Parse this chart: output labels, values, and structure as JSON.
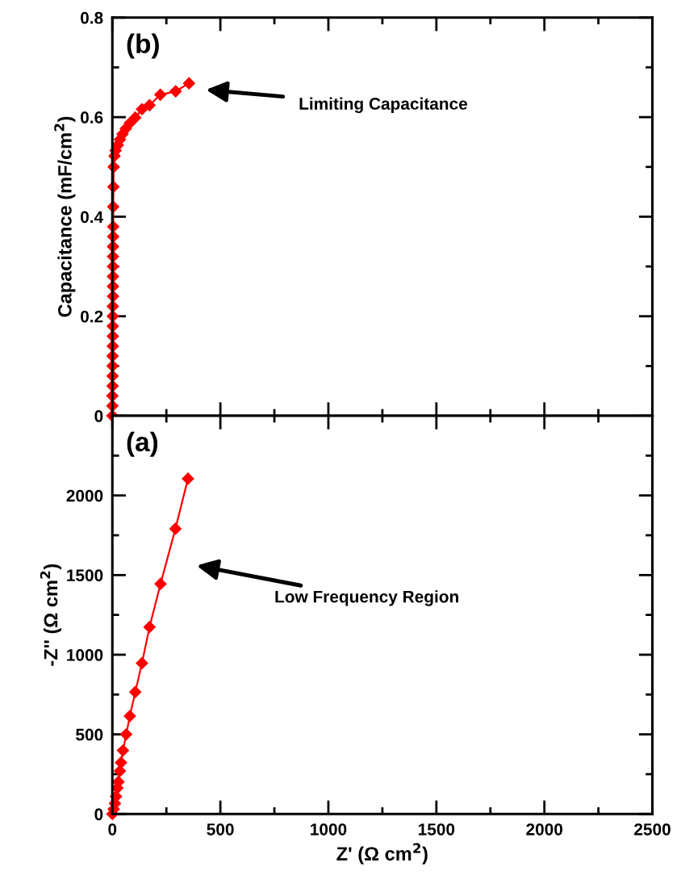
{
  "chart_data": [
    {
      "type": "line",
      "ylabel": "Capacitance (mF/cm$^{2}$)",
      "tick_labels": "y",
      "marker": "diamond",
      "line_style": "solid",
      "grid": false,
      "legend": false,
      "annotations": [
        "(b)",
        "Limiting Capacitance"
      ],
      "xlim": [
        0,
        2500
      ],
      "xticks": [
        0,
        {
          "value": 250,
          "label": null
        },
        500,
        {
          "value": 750,
          "label": null
        },
        1000,
        {
          "value": 1250,
          "label": null
        },
        1500,
        {
          "value": 1750,
          "label": null
        },
        2000,
        {
          "value": 2250,
          "label": null
        },
        2500
      ],
      "ylim": [
        0,
        0.8
      ],
      "yticks": [
        0,
        {
          "value": 0.1,
          "label": null
        },
        0.2,
        {
          "value": 0.3,
          "label": null
        },
        0.4,
        {
          "value": 0.5,
          "label": null
        },
        0.6,
        {
          "value": 0.7,
          "label": null
        },
        0.8
      ],
      "series": [
        {
          "color": "#ff0000",
          "x": [
            0,
            0,
            0,
            1,
            1,
            1,
            1,
            2,
            2,
            2,
            2,
            2,
            3,
            3,
            3,
            3,
            3,
            3,
            4,
            4,
            4,
            5,
            6,
            10,
            15,
            25,
            35,
            47,
            62,
            81,
            106,
            137,
            172,
            222,
            293,
            355
          ],
          "values": [
            0,
            0.02,
            0.04,
            0.06,
            0.08,
            0.1,
            0.12,
            0.14,
            0.16,
            0.18,
            0.2,
            0.22,
            0.24,
            0.26,
            0.28,
            0.3,
            0.32,
            0.34,
            0.36,
            0.38,
            0.42,
            0.46,
            0.5,
            0.522,
            0.533,
            0.544,
            0.555,
            0.566,
            0.577,
            0.588,
            0.599,
            0.616,
            0.624,
            0.645,
            0.652,
            0.668
          ]
        }
      ]
    },
    {
      "type": "line",
      "xlabel": "Z' (Ω cm$^{2}$)",
      "ylabel": "-Z'' (Ω cm$^{2}$)",
      "marker": "diamond",
      "line_style": "solid",
      "grid": false,
      "legend": false,
      "annotations": [
        "(a)",
        "Low Frequency Region"
      ],
      "xlim": [
        0,
        2500
      ],
      "xticks": [
        0,
        {
          "value": 250,
          "label": null
        },
        500,
        {
          "value": 750,
          "label": null
        },
        1000,
        {
          "value": 1250,
          "label": null
        },
        1500,
        {
          "value": 1750,
          "label": null
        },
        2000,
        {
          "value": 2250,
          "label": null
        },
        2500
      ],
      "ylim": [
        0,
        2500
      ],
      "yticks": [
        0,
        {
          "value": 250,
          "label": null
        },
        500,
        {
          "value": 750,
          "label": null
        },
        1000,
        {
          "value": 1250,
          "label": null
        },
        1500,
        {
          "value": 1750,
          "label": null
        },
        2000,
        {
          "value": 2250,
          "label": null
        }
      ],
      "series": [
        {
          "color": "#ff0000",
          "x": [
            0,
            6,
            12,
            17,
            23,
            28,
            35,
            40,
            49,
            64,
            81,
            106,
            137,
            172,
            223,
            292,
            350
          ],
          "values": [
            0,
            30,
            66,
            110,
            163,
            202,
            270,
            323,
            399,
            500,
            615,
            766,
            947,
            1174,
            1445,
            1791,
            2105
          ]
        }
      ]
    }
  ]
}
